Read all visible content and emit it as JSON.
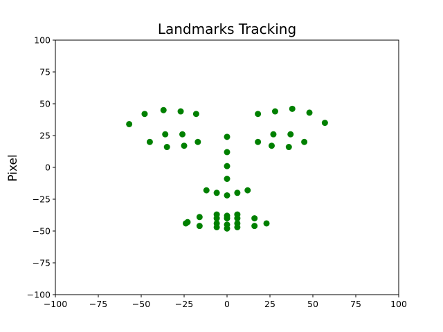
{
  "chart_data": {
    "type": "scatter",
    "title": "Landmarks Tracking",
    "xlabel": "",
    "ylabel": "Pixel",
    "xlim": [
      -100,
      100
    ],
    "ylim": [
      -100,
      100
    ],
    "xticks": [
      -100,
      -75,
      -50,
      -25,
      0,
      25,
      50,
      75,
      100
    ],
    "yticks": [
      -100,
      -75,
      -50,
      -25,
      0,
      25,
      50,
      75,
      100
    ],
    "xtick_labels": [
      "−100",
      "−75",
      "−50",
      "−25",
      "0",
      "25",
      "50",
      "75",
      "100"
    ],
    "ytick_labels": [
      "−100",
      "−75",
      "−50",
      "−25",
      "0",
      "25",
      "50",
      "75",
      "100"
    ],
    "grid": false,
    "marker_color": "#008000",
    "points": [
      {
        "x": -57,
        "y": 34
      },
      {
        "x": -48,
        "y": 42
      },
      {
        "x": -37,
        "y": 45
      },
      {
        "x": -27,
        "y": 44
      },
      {
        "x": -18,
        "y": 42
      },
      {
        "x": 18,
        "y": 42
      },
      {
        "x": 28,
        "y": 44
      },
      {
        "x": 38,
        "y": 46
      },
      {
        "x": 48,
        "y": 43
      },
      {
        "x": 57,
        "y": 35
      },
      {
        "x": 0,
        "y": 24
      },
      {
        "x": 0,
        "y": 12
      },
      {
        "x": 0,
        "y": 1
      },
      {
        "x": 0,
        "y": -9
      },
      {
        "x": -12,
        "y": -18
      },
      {
        "x": -6,
        "y": -20
      },
      {
        "x": 0,
        "y": -22
      },
      {
        "x": 6,
        "y": -20
      },
      {
        "x": 12,
        "y": -18
      },
      {
        "x": -36,
        "y": 26
      },
      {
        "x": -26,
        "y": 26
      },
      {
        "x": -17,
        "y": 20
      },
      {
        "x": -25,
        "y": 17
      },
      {
        "x": -35,
        "y": 16
      },
      {
        "x": -45,
        "y": 20
      },
      {
        "x": 18,
        "y": 20
      },
      {
        "x": 27,
        "y": 26
      },
      {
        "x": 37,
        "y": 26
      },
      {
        "x": 45,
        "y": 20
      },
      {
        "x": 36,
        "y": 16
      },
      {
        "x": 26,
        "y": 17
      },
      {
        "x": -23,
        "y": -43
      },
      {
        "x": -16,
        "y": -39
      },
      {
        "x": -6,
        "y": -37
      },
      {
        "x": 0,
        "y": -38
      },
      {
        "x": 6,
        "y": -37
      },
      {
        "x": 16,
        "y": -40
      },
      {
        "x": 23,
        "y": -44
      },
      {
        "x": 16,
        "y": -46
      },
      {
        "x": 6,
        "y": -47
      },
      {
        "x": 0,
        "y": -48
      },
      {
        "x": -6,
        "y": -47
      },
      {
        "x": -16,
        "y": -46
      },
      {
        "x": -24,
        "y": -44
      },
      {
        "x": -6,
        "y": -40
      },
      {
        "x": 0,
        "y": -40
      },
      {
        "x": 6,
        "y": -40
      },
      {
        "x": 6,
        "y": -44
      },
      {
        "x": 0,
        "y": -45
      },
      {
        "x": -6,
        "y": -44
      }
    ]
  }
}
